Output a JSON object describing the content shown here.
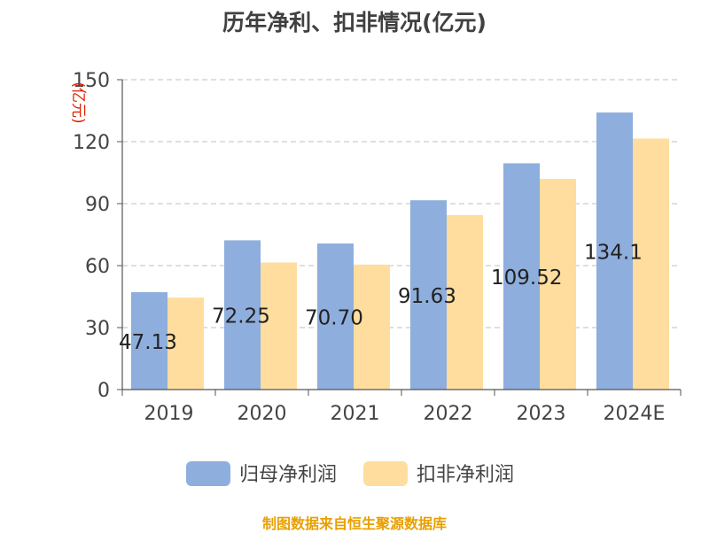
{
  "chart_data": {
    "type": "bar",
    "title": "历年净利、扣非情况(亿元)",
    "ylabel": "(亿元)",
    "xlabel": "",
    "categories": [
      "2019",
      "2020",
      "2021",
      "2022",
      "2023",
      "2024E"
    ],
    "series": [
      {
        "name": "归母净利润",
        "values": [
          47.13,
          72.25,
          70.7,
          91.63,
          109.52,
          134.1
        ],
        "labels": [
          "47.13",
          "72.25",
          "70.70",
          "91.63",
          "109.52",
          "134.1"
        ],
        "color": "#8eaedd"
      },
      {
        "name": "扣非净利润",
        "values": [
          44.5,
          61.5,
          60.5,
          84.5,
          102,
          121.5
        ],
        "color": "#ffdd9e"
      }
    ],
    "ylim": [
      0,
      150
    ],
    "yticks": [
      "0",
      "30",
      "60",
      "90",
      "120",
      "150"
    ],
    "grid": true,
    "legend_position": "bottom"
  },
  "colors": {
    "ylabel": "#dd2200",
    "source": "#e8a000"
  },
  "footer": {
    "source": "制图数据来自恒生聚源数据库"
  }
}
